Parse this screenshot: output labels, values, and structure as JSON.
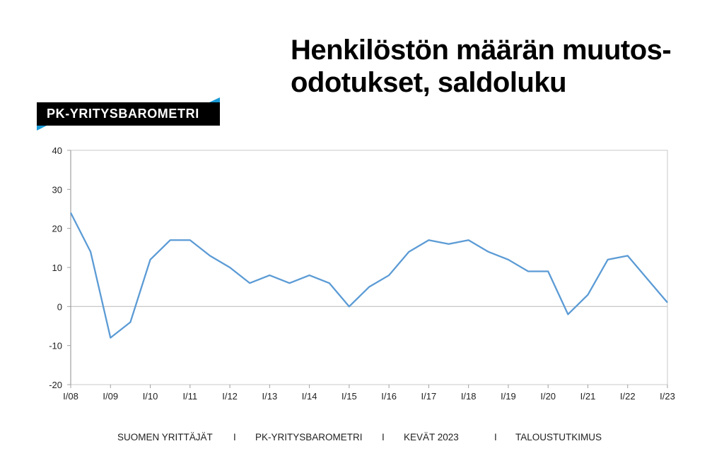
{
  "title": "Henkilöstön määrän muutos-odotukset, saldoluku",
  "title_lines": [
    "Henkilöstön määrän muutos-",
    "odotukset, saldoluku"
  ],
  "banner": {
    "label": "PK-YRITYSBAROMETRI",
    "accent_color": "#1a9ad6"
  },
  "footer": {
    "items": [
      "SUOMEN YRITTÄJÄT",
      "PK-YRITYSBAROMETRI",
      "KEVÄT 2023",
      "TALOUSTUTKIMUS"
    ],
    "separator": "I"
  },
  "chart_data": {
    "type": "line",
    "title": "Henkilöstön määrän muutos-odotukset, saldoluku",
    "xlabel": "",
    "ylabel": "",
    "ylim": [
      -20,
      40
    ],
    "yticks": [
      40,
      30,
      20,
      10,
      0,
      -10,
      -20
    ],
    "xtick_labels": [
      "I/08",
      "I/09",
      "I/10",
      "I/11",
      "I/12",
      "I/13",
      "I/14",
      "I/15",
      "I/16",
      "I/17",
      "I/18",
      "I/19",
      "I/20",
      "I/21",
      "I/22",
      "I/23"
    ],
    "x": [
      "I/08",
      "II/08",
      "I/09",
      "II/09",
      "I/10",
      "II/10",
      "I/11",
      "II/11",
      "I/12",
      "II/12",
      "I/13",
      "II/13",
      "I/14",
      "II/14",
      "I/15",
      "II/15",
      "I/16",
      "II/16",
      "I/17",
      "II/17",
      "I/18",
      "II/18",
      "I/19",
      "II/19",
      "I/20",
      "II/20",
      "I/21",
      "II/21",
      "I/22",
      "II/22",
      "I/23"
    ],
    "series": [
      {
        "values": [
          24,
          14,
          -8,
          -4,
          12,
          17,
          17,
          13,
          10,
          6,
          8,
          6,
          8,
          6,
          0,
          5,
          8,
          14,
          17,
          16,
          17,
          14,
          12,
          9,
          9,
          -2,
          3,
          12,
          13,
          7,
          1
        ],
        "color": "#5b9bd5"
      }
    ],
    "grid": false,
    "legend": "none"
  }
}
